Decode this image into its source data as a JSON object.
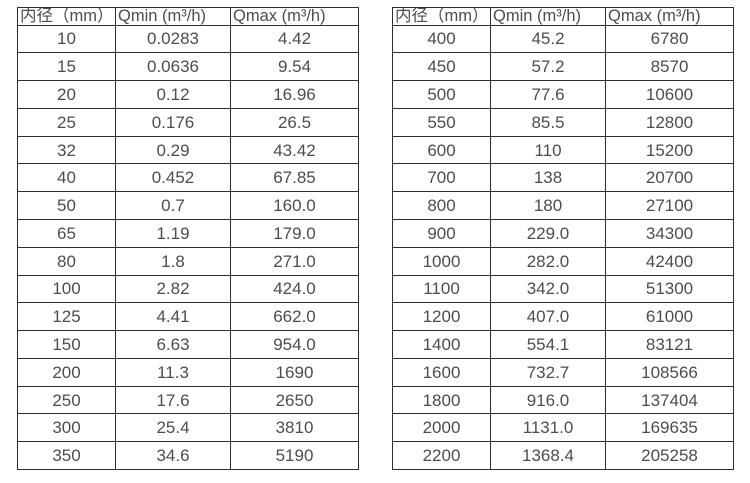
{
  "page": {
    "background_color": "#ffffff",
    "border_color": "#2e2e2e",
    "text_color": "#4d4d4d"
  },
  "tables": [
    {
      "name": "flow-rate-table-dn10-350",
      "headers": [
        "内径（mm）",
        "Qmin (m³/h)",
        "Qmax (m³/h)"
      ],
      "rows": [
        [
          "10",
          "0.0283",
          "4.42"
        ],
        [
          "15",
          "0.0636",
          "9.54"
        ],
        [
          "20",
          "0.12",
          "16.96"
        ],
        [
          "25",
          "0.176",
          "26.5"
        ],
        [
          "32",
          "0.29",
          "43.42"
        ],
        [
          "40",
          "0.452",
          "67.85"
        ],
        [
          "50",
          "0.7",
          "160.0"
        ],
        [
          "65",
          "1.19",
          "179.0"
        ],
        [
          "80",
          "1.8",
          "271.0"
        ],
        [
          "100",
          "2.82",
          "424.0"
        ],
        [
          "125",
          "4.41",
          "662.0"
        ],
        [
          "150",
          "6.63",
          "954.0"
        ],
        [
          "200",
          "11.3",
          "1690"
        ],
        [
          "250",
          "17.6",
          "2650"
        ],
        [
          "300",
          "25.4",
          "3810"
        ],
        [
          "350",
          "34.6",
          "5190"
        ]
      ]
    },
    {
      "name": "flow-rate-table-dn400-2200",
      "headers": [
        "内径（mm）",
        "Qmin (m³/h)",
        "Qmax (m³/h)"
      ],
      "rows": [
        [
          "400",
          "45.2",
          "6780"
        ],
        [
          "450",
          "57.2",
          "8570"
        ],
        [
          "500",
          "77.6",
          "10600"
        ],
        [
          "550",
          "85.5",
          "12800"
        ],
        [
          "600",
          "110",
          "15200"
        ],
        [
          "700",
          "138",
          "20700"
        ],
        [
          "800",
          "180",
          "27100"
        ],
        [
          "900",
          "229.0",
          "34300"
        ],
        [
          "1000",
          "282.0",
          "42400"
        ],
        [
          "1100",
          "342.0",
          "51300"
        ],
        [
          "1200",
          "407.0",
          "61000"
        ],
        [
          "1400",
          "554.1",
          "83121"
        ],
        [
          "1600",
          "732.7",
          "108566"
        ],
        [
          "1800",
          "916.0",
          "137404"
        ],
        [
          "2000",
          "1131.0",
          "169635"
        ],
        [
          "2200",
          "1368.4",
          "205258"
        ]
      ]
    }
  ]
}
